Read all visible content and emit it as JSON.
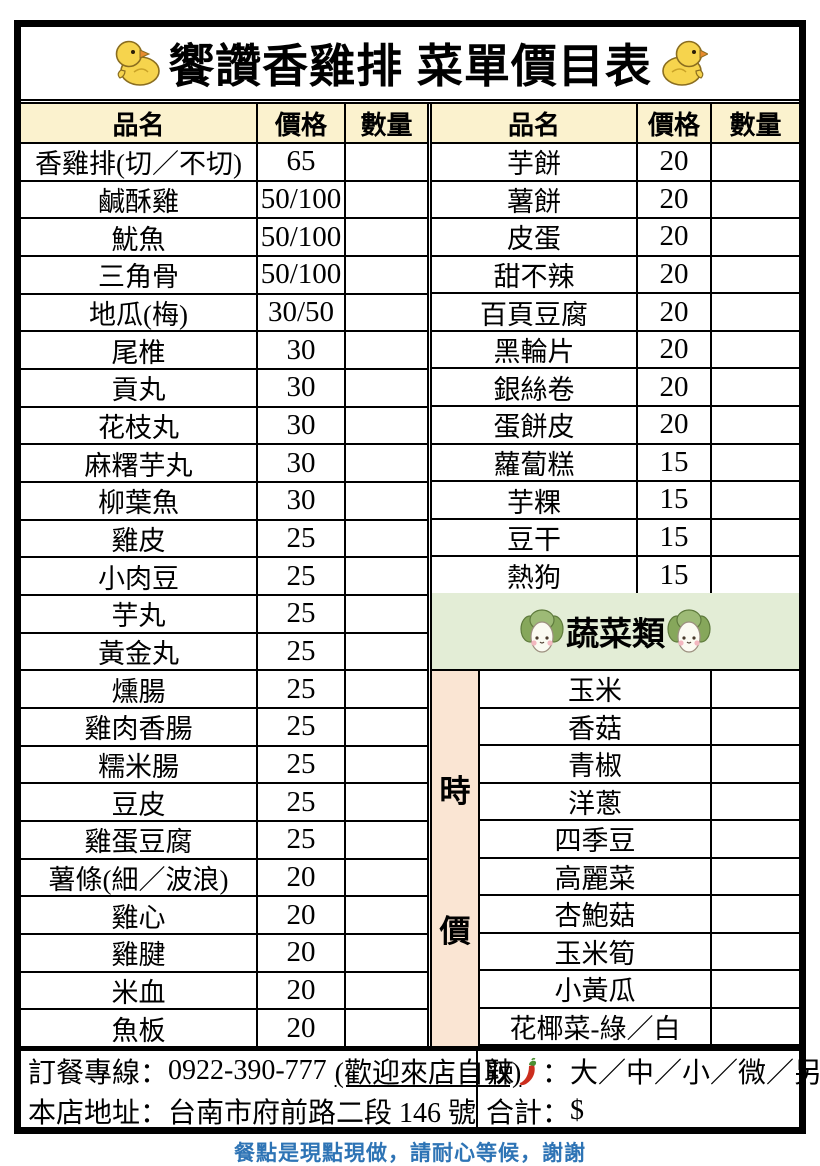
{
  "title": {
    "text": "饗讚香雞排 菜單價目表"
  },
  "columns": {
    "name": "品名",
    "price": "價格",
    "qty": "數量"
  },
  "left_table": {
    "rows": [
      {
        "name": "香雞排(切／不切)",
        "price": "65"
      },
      {
        "name": "鹹酥雞",
        "price": "50/100"
      },
      {
        "name": "魷魚",
        "price": "50/100"
      },
      {
        "name": "三角骨",
        "price": "50/100"
      },
      {
        "name": "地瓜(梅)",
        "price": "30/50"
      },
      {
        "name": "尾椎",
        "price": "30"
      },
      {
        "name": "貢丸",
        "price": "30"
      },
      {
        "name": "花枝丸",
        "price": "30"
      },
      {
        "name": "麻糬芋丸",
        "price": "30"
      },
      {
        "name": "柳葉魚",
        "price": "30"
      },
      {
        "name": "雞皮",
        "price": "25"
      },
      {
        "name": "小肉豆",
        "price": "25"
      },
      {
        "name": "芋丸",
        "price": "25"
      },
      {
        "name": "黃金丸",
        "price": "25"
      },
      {
        "name": "燻腸",
        "price": "25"
      },
      {
        "name": "雞肉香腸",
        "price": "25"
      },
      {
        "name": "糯米腸",
        "price": "25"
      },
      {
        "name": "豆皮",
        "price": "25"
      },
      {
        "name": "雞蛋豆腐",
        "price": "25"
      },
      {
        "name": "薯條(細／波浪)",
        "price": "20"
      },
      {
        "name": "雞心",
        "price": "20"
      },
      {
        "name": "雞腱",
        "price": "20"
      },
      {
        "name": "米血",
        "price": "20"
      },
      {
        "name": "魚板",
        "price": "20"
      }
    ]
  },
  "right_table": {
    "rows": [
      {
        "name": "芋餅",
        "price": "20"
      },
      {
        "name": "薯餅",
        "price": "20"
      },
      {
        "name": "皮蛋",
        "price": "20"
      },
      {
        "name": "甜不辣",
        "price": "20"
      },
      {
        "name": "百頁豆腐",
        "price": "20"
      },
      {
        "name": "黑輪片",
        "price": "20"
      },
      {
        "name": "銀絲卷",
        "price": "20"
      },
      {
        "name": "蛋餅皮",
        "price": "20"
      },
      {
        "name": "蘿蔔糕",
        "price": "15"
      },
      {
        "name": "芋粿",
        "price": "15"
      },
      {
        "name": "豆干",
        "price": "15"
      },
      {
        "name": "熱狗",
        "price": "15"
      }
    ]
  },
  "veg_section": {
    "banner": "蔬菜類",
    "side_label": "時價",
    "side_label_chars": [
      "時",
      "價"
    ],
    "rows": [
      "玉米",
      "香菇",
      "青椒",
      "洋蔥",
      "四季豆",
      "高麗菜",
      "杏鮑菇",
      "玉米筍",
      "小黃瓜",
      "花椰菜-綠／白"
    ]
  },
  "footer_box": {
    "phone_label": "訂餐專線：",
    "phone": "0922-390-777",
    "phone_note": "(歡迎來店自取)",
    "address_label": "本店地址：",
    "address": "台南市府前路二段 146 號",
    "spicy_label": "辣",
    "spicy_options": "：大／中／小／微／另",
    "total_label": "合計：",
    "total_value": "$"
  },
  "footer_note": "餐點是現點現做，請耐心等候，謝謝",
  "colors": {
    "header_bg": "#FBF2CE",
    "veg_banner_bg": "#E3EDD6",
    "market_price_bg": "#FAE5D3",
    "footer_note_blue": "#2E74B5",
    "border_black": "#000000"
  }
}
